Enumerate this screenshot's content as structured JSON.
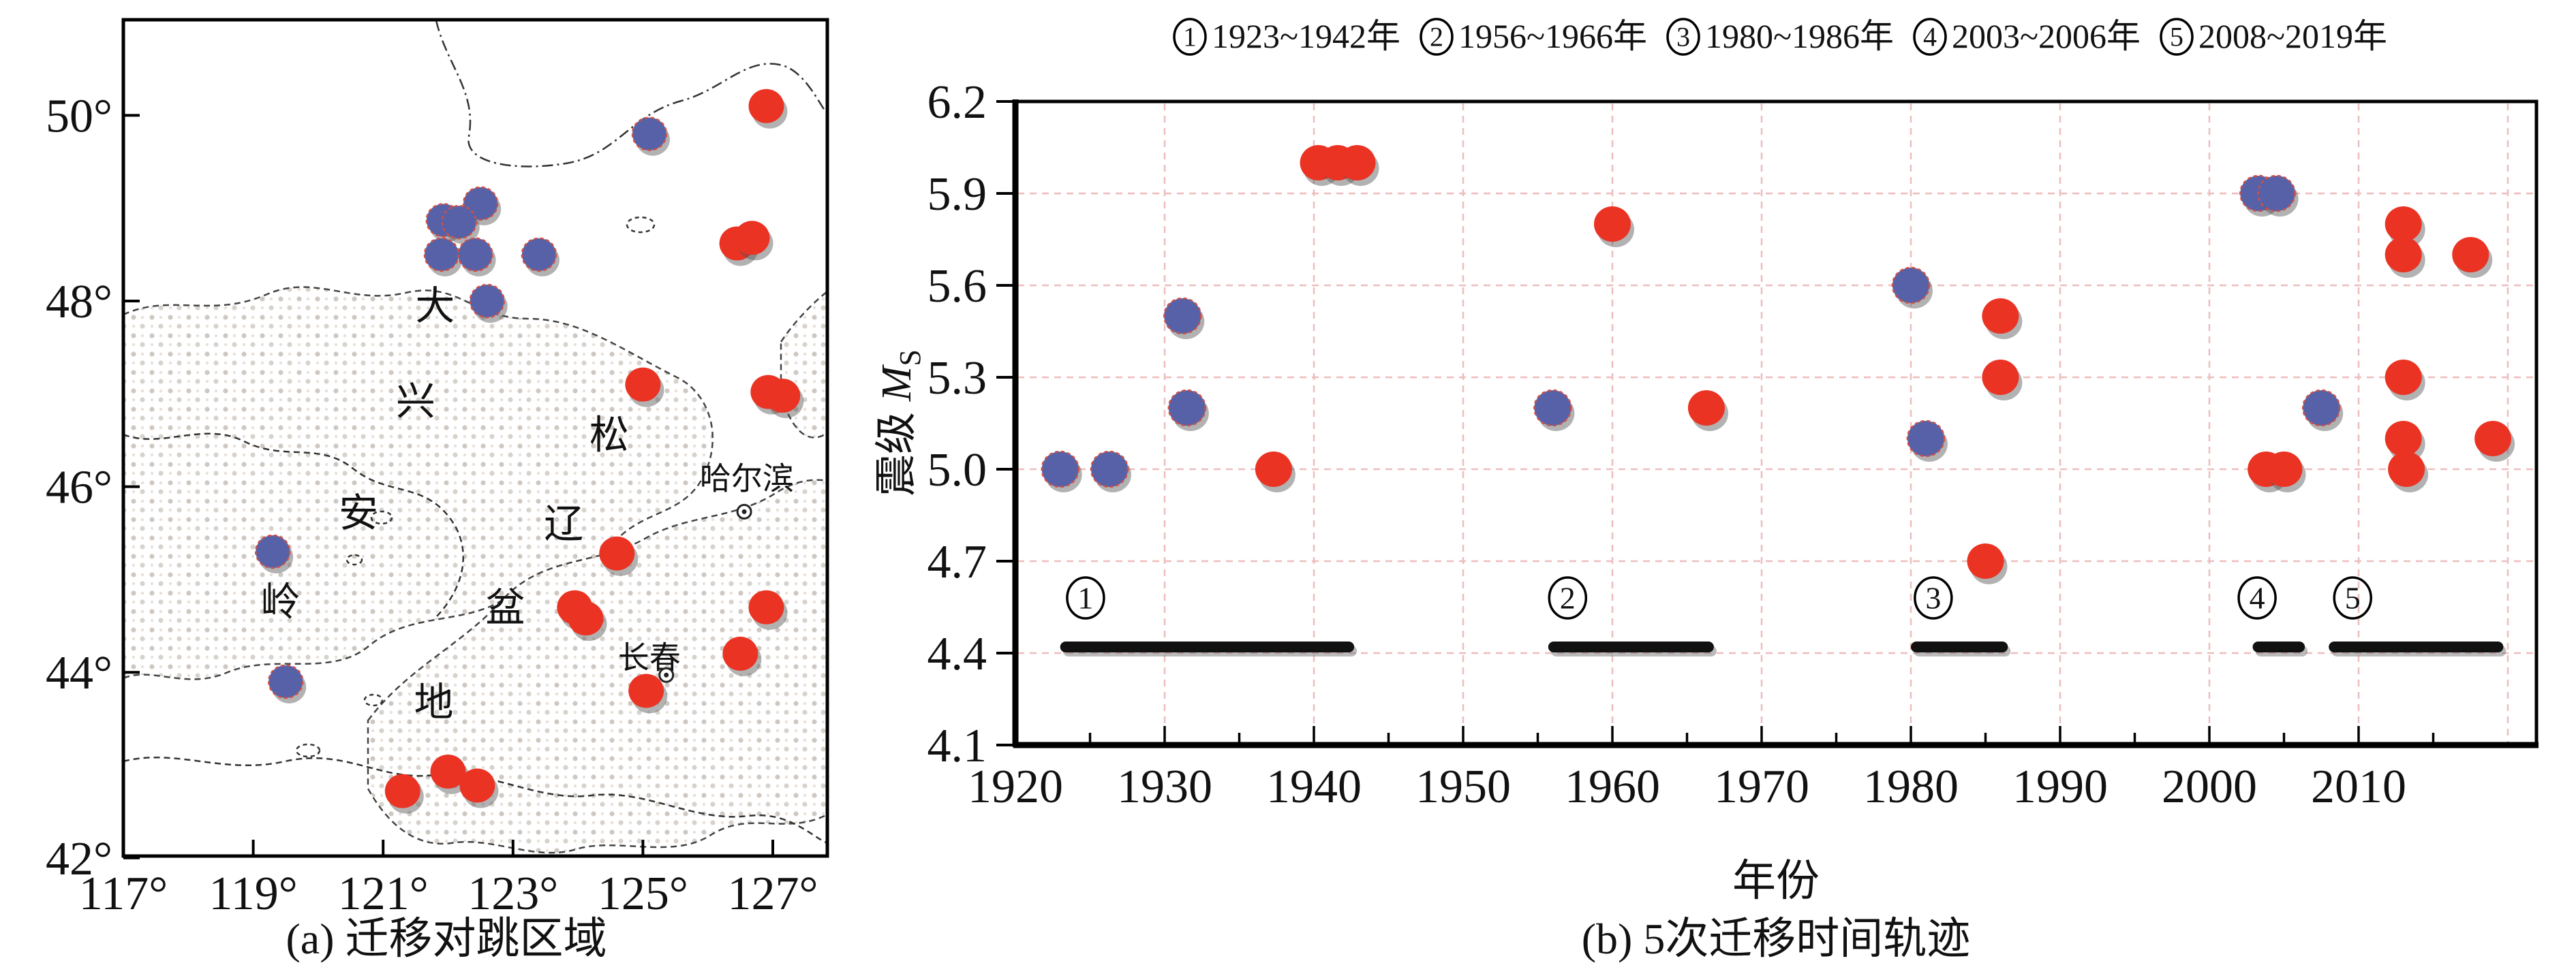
{
  "figure": {
    "panel_a": {
      "caption": "(a) 迁移对跳区域",
      "lon_ticks": [
        {
          "label": "117°",
          "value": 117
        },
        {
          "label": "119°",
          "value": 119
        },
        {
          "label": "121°",
          "value": 121
        },
        {
          "label": "123°",
          "value": 123
        },
        {
          "label": "125°",
          "value": 125
        },
        {
          "label": "127°",
          "value": 127
        }
      ],
      "lat_ticks": [
        {
          "label": "50°",
          "value": 50
        },
        {
          "label": "48°",
          "value": 48
        },
        {
          "label": "46°",
          "value": 46
        },
        {
          "label": "44°",
          "value": 44
        },
        {
          "label": "42°",
          "value": 42
        }
      ],
      "region_label_chars": [
        {
          "char": "大",
          "lon": 121.8,
          "lat": 47.95
        },
        {
          "char": "兴",
          "lon": 121.5,
          "lat": 46.92
        },
        {
          "char": "安",
          "lon": 120.62,
          "lat": 45.72
        },
        {
          "char": "岭",
          "lon": 119.42,
          "lat": 44.76
        },
        {
          "char": "松",
          "lon": 124.48,
          "lat": 46.56
        },
        {
          "char": "辽",
          "lon": 123.78,
          "lat": 45.6
        },
        {
          "char": "盆",
          "lon": 122.88,
          "lat": 44.7
        },
        {
          "char": "地",
          "lon": 121.78,
          "lat": 43.68
        }
      ],
      "cities": [
        {
          "name": "哈尔滨",
          "lon": 126.6,
          "lat": 46.08,
          "marker_lon": 126.56,
          "marker_lat": 45.73
        },
        {
          "name": "长春",
          "lon": 125.1,
          "lat": 44.15,
          "marker_lon": 125.36,
          "marker_lat": 43.97
        }
      ],
      "blue_points": [
        [
          122.5,
          49.05
        ],
        [
          121.93,
          48.87
        ],
        [
          122.17,
          48.85
        ],
        [
          121.9,
          48.5
        ],
        [
          122.42,
          48.5
        ],
        [
          123.4,
          48.5
        ],
        [
          122.6,
          48.0
        ],
        [
          125.1,
          49.8
        ],
        [
          119.3,
          45.3
        ],
        [
          119.5,
          43.9
        ]
      ],
      "red_points": [
        [
          126.9,
          50.1
        ],
        [
          126.45,
          48.62
        ],
        [
          126.68,
          48.68
        ],
        [
          125.0,
          47.1
        ],
        [
          126.93,
          47.02
        ],
        [
          127.15,
          46.98
        ],
        [
          124.6,
          45.28
        ],
        [
          123.95,
          44.7
        ],
        [
          124.12,
          44.58
        ],
        [
          125.05,
          43.8
        ],
        [
          126.5,
          44.2
        ],
        [
          126.9,
          44.7
        ],
        [
          121.3,
          42.72
        ],
        [
          122.0,
          42.93
        ],
        [
          122.45,
          42.78
        ]
      ],
      "colors": {
        "blue": "#5761a7",
        "red": "#ea3323",
        "stipple": "#cfc8c2",
        "coast": "#333333"
      }
    },
    "chart_data": {
      "type": "scatter",
      "xlabel": "年份",
      "ylabel_prefix": "震级 ",
      "ylabel_m": "M",
      "ylabel_sub": "S",
      "caption": "(b) 5次迁移时间轨迹",
      "xlim": [
        1920,
        2022
      ],
      "ylim": [
        4.1,
        6.2
      ],
      "x_ticks": [
        1920,
        1930,
        1940,
        1950,
        1960,
        1970,
        1980,
        1990,
        2000,
        2010
      ],
      "y_ticks": [
        "6.2",
        "5.9",
        "5.6",
        "5.3",
        "5.0",
        "4.7",
        "4.4",
        "4.1"
      ],
      "grid_x": [
        1930,
        1940,
        1950,
        1960,
        1970,
        1980,
        1990,
        2000,
        2010,
        2020
      ],
      "grid_y": [
        5.9,
        5.6,
        5.3,
        5.0,
        4.7,
        4.4
      ],
      "legend_position": "top-center",
      "grid": true,
      "periods": [
        {
          "num": "1",
          "label": "1923~1942年",
          "bar_start": 1923.0,
          "bar_end": 1942.7,
          "bar_mag": 4.42,
          "num_year": 1924.7
        },
        {
          "num": "2",
          "label": "1956~1966年",
          "bar_start": 1955.7,
          "bar_end": 1966.8,
          "bar_mag": 4.42,
          "num_year": 1957.0
        },
        {
          "num": "3",
          "label": "1980~1986年",
          "bar_start": 1980.0,
          "bar_end": 1986.5,
          "bar_mag": 4.42,
          "num_year": 1981.5
        },
        {
          "num": "4",
          "label": "2003~2006年",
          "bar_start": 2002.9,
          "bar_end": 2006.4,
          "bar_mag": 4.42,
          "num_year": 2003.2
        },
        {
          "num": "5",
          "label": "2008~2019年",
          "bar_start": 2008.0,
          "bar_end": 2019.7,
          "bar_mag": 4.42,
          "num_year": 2009.6
        }
      ],
      "series": [
        {
          "name": "northwest-blue",
          "color": "#5761a7",
          "points": [
            [
              1923.0,
              5.0
            ],
            [
              1926.3,
              5.0
            ],
            [
              1931.2,
              5.5
            ],
            [
              1931.5,
              5.2
            ],
            [
              1956.0,
              5.2
            ],
            [
              1980.0,
              5.6
            ],
            [
              1981.0,
              5.1
            ],
            [
              2003.3,
              5.9
            ],
            [
              2004.5,
              5.9
            ],
            [
              2007.5,
              5.2
            ]
          ]
        },
        {
          "name": "southeast-red",
          "color": "#ea3323",
          "points": [
            [
              1937.3,
              5.0
            ],
            [
              1940.3,
              6.0
            ],
            [
              1941.6,
              6.0
            ],
            [
              1942.9,
              6.0
            ],
            [
              1960.0,
              5.8
            ],
            [
              1966.3,
              5.2
            ],
            [
              1986.0,
              5.5
            ],
            [
              1986.0,
              5.3
            ],
            [
              1985.0,
              4.7
            ],
            [
              2003.8,
              5.0
            ],
            [
              2005.0,
              5.0
            ],
            [
              2013.0,
              5.8
            ],
            [
              2013.0,
              5.7
            ],
            [
              2017.5,
              5.7
            ],
            [
              2013.0,
              5.3
            ],
            [
              2013.0,
              5.1
            ],
            [
              2013.2,
              5.0
            ],
            [
              2019.0,
              5.1
            ]
          ]
        }
      ],
      "colors": {
        "gridline": "#eebdbd",
        "bar": "#111111",
        "frame": "#000000"
      }
    }
  }
}
